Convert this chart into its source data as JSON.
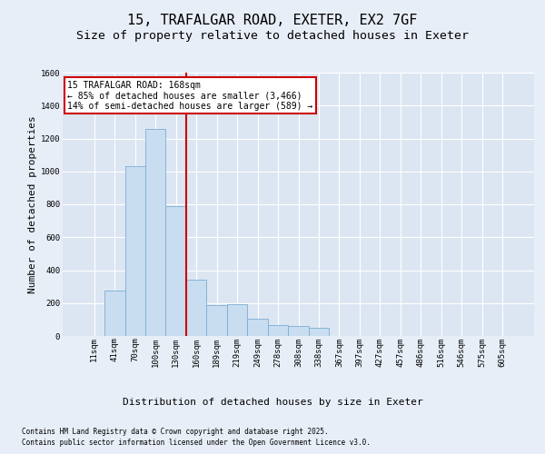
{
  "title_line1": "15, TRAFALGAR ROAD, EXETER, EX2 7GF",
  "title_line2": "Size of property relative to detached houses in Exeter",
  "xlabel": "Distribution of detached houses by size in Exeter",
  "ylabel": "Number of detached properties",
  "categories": [
    "11sqm",
    "41sqm",
    "70sqm",
    "100sqm",
    "130sqm",
    "160sqm",
    "189sqm",
    "219sqm",
    "249sqm",
    "278sqm",
    "308sqm",
    "338sqm",
    "367sqm",
    "397sqm",
    "427sqm",
    "457sqm",
    "486sqm",
    "516sqm",
    "546sqm",
    "575sqm",
    "605sqm"
  ],
  "values": [
    0,
    275,
    1030,
    1260,
    790,
    340,
    185,
    195,
    105,
    65,
    60,
    50,
    0,
    0,
    0,
    0,
    0,
    0,
    0,
    0,
    0
  ],
  "bar_color": "#c9ddf0",
  "bar_edge_color": "#7aadd4",
  "bg_color": "#dce6f2",
  "fig_bg_color": "#e8eef8",
  "grid_color": "#ffffff",
  "vline_color": "#cc0000",
  "vline_x": 4.5,
  "annotation_text": "15 TRAFALGAR ROAD: 168sqm\n← 85% of detached houses are smaller (3,466)\n14% of semi-detached houses are larger (589) →",
  "annotation_box_edgecolor": "#cc0000",
  "annotation_facecolor": "#ffffff",
  "ylim_max": 1600,
  "yticks": [
    0,
    200,
    400,
    600,
    800,
    1000,
    1200,
    1400,
    1600
  ],
  "footer_line1": "Contains HM Land Registry data © Crown copyright and database right 2025.",
  "footer_line2": "Contains public sector information licensed under the Open Government Licence v3.0.",
  "title_fontsize": 11,
  "subtitle_fontsize": 9.5,
  "tick_fontsize": 6.5,
  "ylabel_fontsize": 8,
  "xlabel_fontsize": 8,
  "annotation_fontsize": 7,
  "footer_fontsize": 5.5
}
